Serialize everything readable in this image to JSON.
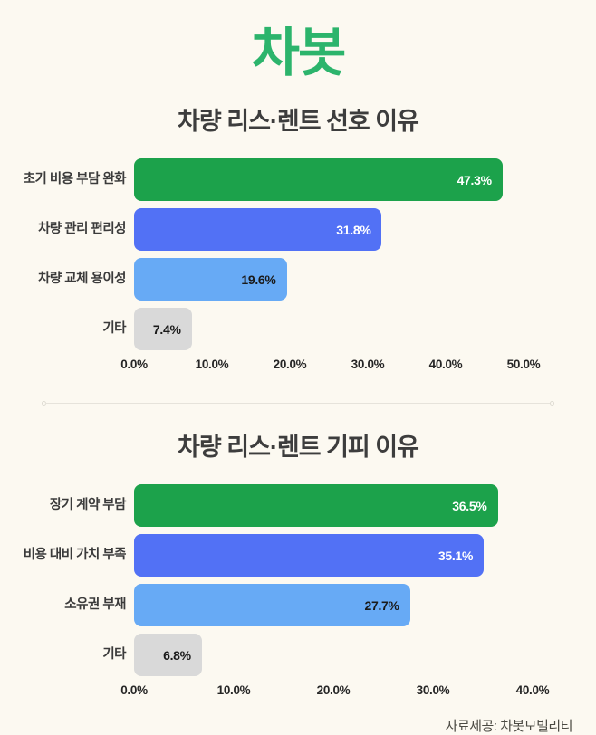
{
  "page": {
    "logo_text": "차봇",
    "logo_color": "#2CB46C",
    "background": "#FCF9F1",
    "footer": "자료제공: 차봇모빌리티"
  },
  "chart_data": [
    {
      "type": "bar",
      "orientation": "horizontal",
      "title": "차량 리스·렌트 선호 이유",
      "categories": [
        "초기 비용 부담 완화",
        "차량 관리 편리성",
        "차량 교체 용이성",
        "기타"
      ],
      "values": [
        47.3,
        31.8,
        19.6,
        7.4
      ],
      "value_labels": [
        "47.3%",
        "31.8%",
        "19.6%",
        "7.4%"
      ],
      "bar_colors": [
        "#1CA24B",
        "#5271F5",
        "#67AAF5",
        "#D9D9D9"
      ],
      "value_label_colors": [
        "#FFFFFF",
        "#FFFFFF",
        "#1A1A1A",
        "#1A1A1A"
      ],
      "xlim": [
        0,
        50
      ],
      "xticks": [
        "0.0%",
        "10.0%",
        "20.0%",
        "30.0%",
        "40.0%",
        "50.0%"
      ],
      "grid": false,
      "legend": "none"
    },
    {
      "type": "bar",
      "orientation": "horizontal",
      "title": "차량 리스·렌트 기피 이유",
      "categories": [
        "장기 계약 부담",
        "비용 대비 가치 부족",
        "소유권 부재",
        "기타"
      ],
      "values": [
        36.5,
        35.1,
        27.7,
        6.8
      ],
      "value_labels": [
        "36.5%",
        "35.1%",
        "27.7%",
        "6.8%"
      ],
      "bar_colors": [
        "#1CA24B",
        "#5271F5",
        "#67AAF5",
        "#D9D9D9"
      ],
      "value_label_colors": [
        "#FFFFFF",
        "#FFFFFF",
        "#1A1A1A",
        "#1A1A1A"
      ],
      "xlim": [
        0,
        40
      ],
      "xticks": [
        "0.0%",
        "10.0%",
        "20.0%",
        "30.0%",
        "40.0%"
      ],
      "grid": false,
      "legend": "none"
    }
  ]
}
